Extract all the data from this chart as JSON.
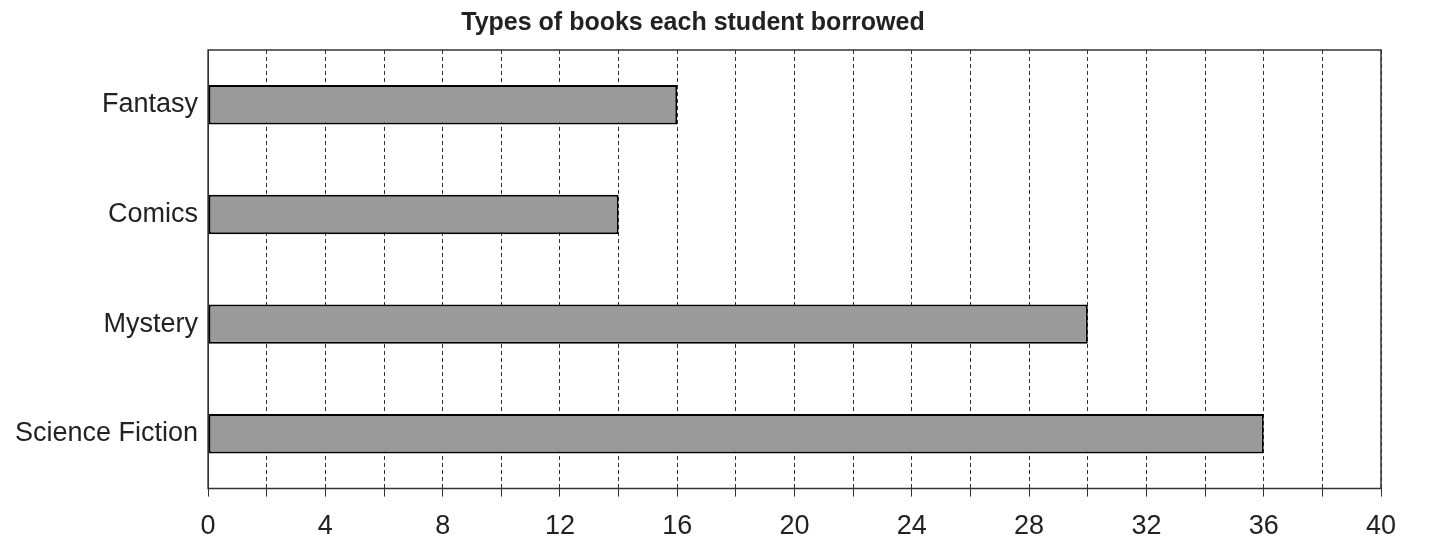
{
  "chart_data": {
    "type": "bar",
    "orientation": "horizontal",
    "title": "Types of books each student borrowed",
    "categories": [
      "Fantasy",
      "Comics",
      "Mystery",
      "Science Fiction"
    ],
    "values": [
      16,
      14,
      30,
      36
    ],
    "color": "#9a9a9a",
    "xlim": [
      0,
      40
    ],
    "xticks": [
      0,
      {
        "value": 2,
        "label": null
      },
      4,
      {
        "value": 6,
        "label": null
      },
      8,
      {
        "value": 10,
        "label": null
      },
      12,
      {
        "value": 14,
        "label": null
      },
      16,
      {
        "value": 18,
        "label": null
      },
      20,
      {
        "value": 22,
        "label": null
      },
      24,
      {
        "value": 26,
        "label": null
      },
      28,
      {
        "value": 30,
        "label": null
      },
      32,
      {
        "value": 34,
        "label": null
      },
      36,
      {
        "value": 38,
        "label": null
      },
      40
    ],
    "grid": "x"
  }
}
